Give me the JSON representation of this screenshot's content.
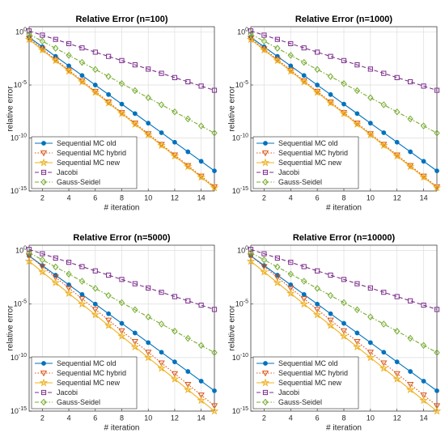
{
  "chart_data": [
    {
      "type": "line",
      "title": "Relative Error (n=100)",
      "x_label": "# iteration",
      "y_label": "relative error",
      "x": [
        1,
        2,
        3,
        4,
        5,
        6,
        7,
        8,
        9,
        10,
        11,
        12,
        13,
        14,
        15
      ],
      "xlim": [
        1,
        15
      ],
      "xticks": [
        2,
        4,
        6,
        8,
        10,
        12,
        14
      ],
      "ylim": [
        1e-15,
        3.16
      ],
      "yscale": "log",
      "grid": true,
      "legend": "lower left",
      "yticks": [
        {
          "value": 1e-15,
          "label": "10^-15"
        },
        {
          "value": 1e-10,
          "label": "10^-10"
        },
        {
          "value": 1e-05,
          "label": "10^-5"
        },
        {
          "value": 1,
          "label": "10^0"
        }
      ],
      "series": [
        {
          "name": "Sequential MC old",
          "color": "#0072BD",
          "dash": "solid",
          "marker": "circle",
          "values": [
            0.316,
            0.0398,
            0.00501,
            0.000631,
            7.94e-05,
            1e-05,
            1.26e-06,
            1.58e-07,
            2e-08,
            2.51e-09,
            3.16e-10,
            3.98e-11,
            5.01e-12,
            6.31e-13,
            7.94e-14
          ]
        },
        {
          "name": "Sequential MC hybrid",
          "color": "#D95319",
          "dash": "dotted",
          "marker": "triangle",
          "values": [
            0.251,
            0.0251,
            0.00251,
            0.000251,
            2.51e-05,
            2.51e-06,
            2.51e-07,
            2.51e-08,
            2.51e-09,
            2.51e-10,
            2.51e-11,
            2.51e-12,
            2.51e-13,
            2.51e-14,
            2.51e-15
          ]
        },
        {
          "name": "Sequential MC new",
          "color": "#EDB120",
          "dash": "solid",
          "marker": "star",
          "values": [
            0.2,
            0.02,
            0.002,
            0.0002,
            2e-05,
            2e-06,
            2e-07,
            2e-08,
            2e-09,
            2e-10,
            2e-11,
            2e-12,
            2e-13,
            2e-14,
            2e-15
          ]
        },
        {
          "name": "Jacobi",
          "color": "#7E2F8E",
          "dash": "dashed",
          "marker": "square",
          "values": [
            1.26,
            0.501,
            0.2,
            0.0794,
            0.0316,
            0.0126,
            0.00501,
            0.002,
            0.000794,
            0.000316,
            0.000126,
            5.01e-05,
            2e-05,
            7.94e-06,
            3.16e-06
          ]
        },
        {
          "name": "Gauss-Seidel",
          "color": "#77AC30",
          "dash": "dashdot",
          "marker": "diamond",
          "values": [
            0.631,
            0.136,
            0.0293,
            0.00631,
            0.00136,
            0.000293,
            6.31e-05,
            1.36e-05,
            2.93e-06,
            6.31e-07,
            1.36e-07,
            2.93e-08,
            6.31e-09,
            1.36e-09,
            2.93e-10
          ]
        }
      ]
    },
    {
      "type": "line",
      "title": "Relative Error (n=1000)",
      "x_label": "# iteration",
      "y_label": "relative error",
      "x": [
        1,
        2,
        3,
        4,
        5,
        6,
        7,
        8,
        9,
        10,
        11,
        12,
        13,
        14,
        15
      ],
      "xlim": [
        1,
        15
      ],
      "xticks": [
        2,
        4,
        6,
        8,
        10,
        12,
        14
      ],
      "ylim": [
        1e-15,
        3.16
      ],
      "yscale": "log",
      "grid": true,
      "legend": "lower left",
      "yticks": [
        {
          "value": 1e-15,
          "label": "10^-15"
        },
        {
          "value": 1e-10,
          "label": "10^-10"
        },
        {
          "value": 1e-05,
          "label": "10^-5"
        },
        {
          "value": 1,
          "label": "10^0"
        }
      ],
      "series": [
        {
          "name": "Sequential MC old",
          "color": "#0072BD",
          "dash": "solid",
          "marker": "circle",
          "values": [
            0.316,
            0.0398,
            0.00501,
            0.000631,
            7.94e-05,
            1e-05,
            1.26e-06,
            1.58e-07,
            2e-08,
            2.51e-09,
            3.16e-10,
            3.98e-11,
            5.01e-12,
            6.31e-13,
            7.94e-14
          ]
        },
        {
          "name": "Sequential MC hybrid",
          "color": "#D95319",
          "dash": "dotted",
          "marker": "triangle",
          "values": [
            0.251,
            0.0251,
            0.00251,
            0.000251,
            2.51e-05,
            2.51e-06,
            2.51e-07,
            2.51e-08,
            2.51e-09,
            2.51e-10,
            2.51e-11,
            2.51e-12,
            2.51e-13,
            2.51e-14,
            2.51e-15
          ]
        },
        {
          "name": "Sequential MC new",
          "color": "#EDB120",
          "dash": "solid",
          "marker": "star",
          "values": [
            0.2,
            0.02,
            0.002,
            0.0002,
            2e-05,
            2e-06,
            2e-07,
            2e-08,
            2e-09,
            2e-10,
            2e-11,
            2e-12,
            2e-13,
            2e-14,
            2e-15
          ]
        },
        {
          "name": "Jacobi",
          "color": "#7E2F8E",
          "dash": "dashed",
          "marker": "square",
          "values": [
            1.26,
            0.501,
            0.2,
            0.0794,
            0.0316,
            0.0126,
            0.00501,
            0.002,
            0.000794,
            0.000316,
            0.000126,
            5.01e-05,
            2e-05,
            7.94e-06,
            3.16e-06
          ]
        },
        {
          "name": "Gauss-Seidel",
          "color": "#77AC30",
          "dash": "dashdot",
          "marker": "diamond",
          "values": [
            0.631,
            0.136,
            0.0293,
            0.00631,
            0.00136,
            0.000293,
            6.31e-05,
            1.36e-05,
            2.93e-06,
            6.31e-07,
            1.36e-07,
            2.93e-08,
            6.31e-09,
            1.36e-09,
            2.93e-10
          ]
        }
      ]
    },
    {
      "type": "line",
      "title": "Relative Error (n=5000)",
      "x_label": "# iteration",
      "y_label": "relative error",
      "x": [
        1,
        2,
        3,
        4,
        5,
        6,
        7,
        8,
        9,
        10,
        11,
        12,
        13,
        14,
        15
      ],
      "xlim": [
        1,
        15
      ],
      "xticks": [
        2,
        4,
        6,
        8,
        10,
        12,
        14
      ],
      "ylim": [
        1e-15,
        3.16
      ],
      "yscale": "log",
      "grid": true,
      "legend": "lower left",
      "yticks": [
        {
          "value": 1e-15,
          "label": "10^-15"
        },
        {
          "value": 1e-10,
          "label": "10^-10"
        },
        {
          "value": 1e-05,
          "label": "10^-5"
        },
        {
          "value": 1,
          "label": "10^0"
        }
      ],
      "series": [
        {
          "name": "Sequential MC old",
          "color": "#0072BD",
          "dash": "solid",
          "marker": "circle",
          "values": [
            0.316,
            0.0398,
            0.00501,
            0.000631,
            7.94e-05,
            1e-05,
            1.26e-06,
            1.58e-07,
            2e-08,
            2.51e-09,
            3.16e-10,
            3.98e-11,
            5.01e-12,
            6.31e-13,
            7.94e-14
          ]
        },
        {
          "name": "Sequential MC hybrid",
          "color": "#D95319",
          "dash": "dotted",
          "marker": "triangle",
          "values": [
            0.316,
            0.0316,
            0.00316,
            0.000316,
            3.16e-05,
            3.16e-06,
            3.16e-07,
            3.16e-08,
            3.16e-09,
            3.16e-10,
            3.16e-11,
            3.16e-12,
            3.16e-13,
            3.16e-14,
            3.16e-15
          ]
        },
        {
          "name": "Sequential MC new",
          "color": "#EDB120",
          "dash": "solid",
          "marker": "star",
          "values": [
            0.1,
            0.01,
            0.001,
            0.0001,
            1e-05,
            1e-06,
            1e-07,
            1e-08,
            1e-09,
            1e-10,
            1e-11,
            1e-12,
            1e-13,
            1e-14,
            1e-15
          ]
        },
        {
          "name": "Jacobi",
          "color": "#7E2F8E",
          "dash": "dashed",
          "marker": "square",
          "values": [
            1.26,
            0.501,
            0.2,
            0.0794,
            0.0316,
            0.0126,
            0.00501,
            0.002,
            0.000794,
            0.000316,
            0.000126,
            5.01e-05,
            2e-05,
            7.94e-06,
            3.16e-06
          ]
        },
        {
          "name": "Gauss-Seidel",
          "color": "#77AC30",
          "dash": "dashdot",
          "marker": "diamond",
          "values": [
            0.631,
            0.136,
            0.0293,
            0.00631,
            0.00136,
            0.000293,
            6.31e-05,
            1.36e-05,
            2.93e-06,
            6.31e-07,
            1.36e-07,
            2.93e-08,
            6.31e-09,
            1.36e-09,
            2.93e-10
          ]
        }
      ]
    },
    {
      "type": "line",
      "title": "Relative Error (n=10000)",
      "x_label": "# iteration",
      "y_label": "relative error",
      "x": [
        1,
        2,
        3,
        4,
        5,
        6,
        7,
        8,
        9,
        10,
        11,
        12,
        13,
        14,
        15
      ],
      "xlim": [
        1,
        15
      ],
      "xticks": [
        2,
        4,
        6,
        8,
        10,
        12,
        14
      ],
      "ylim": [
        1e-15,
        3.16
      ],
      "yscale": "log",
      "grid": true,
      "legend": "lower left",
      "yticks": [
        {
          "value": 1e-15,
          "label": "10^-15"
        },
        {
          "value": 1e-10,
          "label": "10^-10"
        },
        {
          "value": 1e-05,
          "label": "10^-5"
        },
        {
          "value": 1,
          "label": "10^0"
        }
      ],
      "series": [
        {
          "name": "Sequential MC old",
          "color": "#0072BD",
          "dash": "solid",
          "marker": "circle",
          "values": [
            0.316,
            0.0398,
            0.00501,
            0.000631,
            7.94e-05,
            1e-05,
            1.26e-06,
            1.58e-07,
            2e-08,
            2.51e-09,
            3.16e-10,
            3.98e-11,
            5.01e-12,
            6.31e-13,
            7.94e-14
          ]
        },
        {
          "name": "Sequential MC hybrid",
          "color": "#D95319",
          "dash": "dotted",
          "marker": "triangle",
          "values": [
            0.316,
            0.0316,
            0.00316,
            0.000316,
            3.16e-05,
            3.16e-06,
            3.16e-07,
            3.16e-08,
            3.16e-09,
            3.16e-10,
            3.16e-11,
            3.16e-12,
            3.16e-13,
            3.16e-14,
            3.16e-15
          ]
        },
        {
          "name": "Sequential MC new",
          "color": "#EDB120",
          "dash": "solid",
          "marker": "star",
          "values": [
            0.1,
            0.01,
            0.001,
            0.0001,
            1e-05,
            1e-06,
            1e-07,
            1e-08,
            1e-09,
            1e-10,
            1e-11,
            1e-12,
            1e-13,
            1e-14,
            1e-15
          ]
        },
        {
          "name": "Jacobi",
          "color": "#7E2F8E",
          "dash": "dashed",
          "marker": "square",
          "values": [
            1.26,
            0.501,
            0.2,
            0.0794,
            0.0316,
            0.0126,
            0.00501,
            0.002,
            0.000794,
            0.000316,
            0.000126,
            5.01e-05,
            2e-05,
            7.94e-06,
            3.16e-06
          ]
        },
        {
          "name": "Gauss-Seidel",
          "color": "#77AC30",
          "dash": "dashdot",
          "marker": "diamond",
          "values": [
            0.631,
            0.136,
            0.0293,
            0.00631,
            0.00136,
            0.000293,
            6.31e-05,
            1.36e-05,
            2.93e-06,
            6.31e-07,
            1.36e-07,
            2.93e-08,
            6.31e-09,
            1.36e-09,
            2.93e-10
          ]
        }
      ]
    }
  ]
}
